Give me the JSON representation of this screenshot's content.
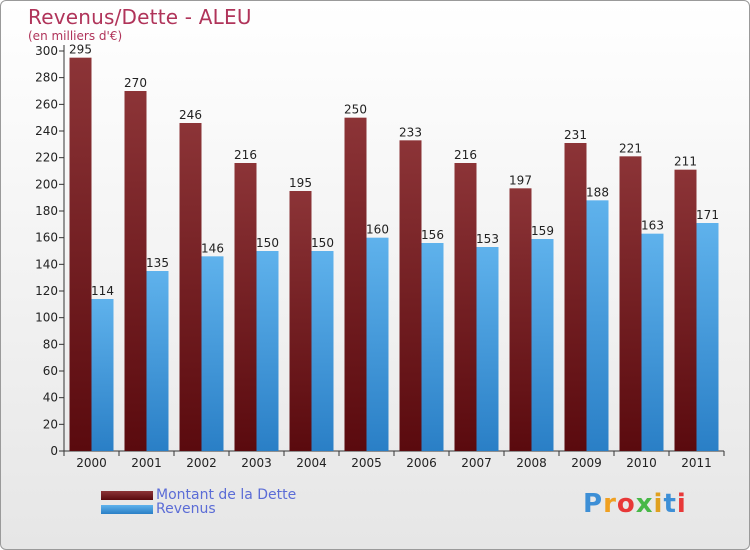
{
  "chart_data": {
    "type": "bar",
    "title": "Revenus/Dette - ALEU",
    "subtitle": "(en milliers d'€)",
    "categories": [
      "2000",
      "2001",
      "2002",
      "2003",
      "2004",
      "2005",
      "2006",
      "2007",
      "2008",
      "2009",
      "2010",
      "2011"
    ],
    "series": [
      {
        "name": "Montant de la Dette",
        "color": "#7a1e22",
        "values": [
          295,
          270,
          246,
          216,
          195,
          250,
          233,
          216,
          197,
          231,
          221,
          211
        ]
      },
      {
        "name": "Revenus",
        "color": "#3f9be0",
        "values": [
          114,
          135,
          146,
          150,
          150,
          160,
          156,
          153,
          159,
          188,
          163,
          171
        ]
      }
    ],
    "ylim": [
      0,
      300
    ],
    "yticks": [
      0,
      20,
      40,
      60,
      80,
      100,
      120,
      140,
      160,
      180,
      200,
      220,
      240,
      260,
      280,
      300
    ],
    "grid": false,
    "legend": "bottom-left"
  },
  "logo": {
    "text": "Proxiti",
    "colors": [
      "#3d8fd6",
      "#f0a020",
      "#e83838",
      "#48b848",
      "#e0a020",
      "#3d8fd6",
      "#e83838"
    ]
  }
}
